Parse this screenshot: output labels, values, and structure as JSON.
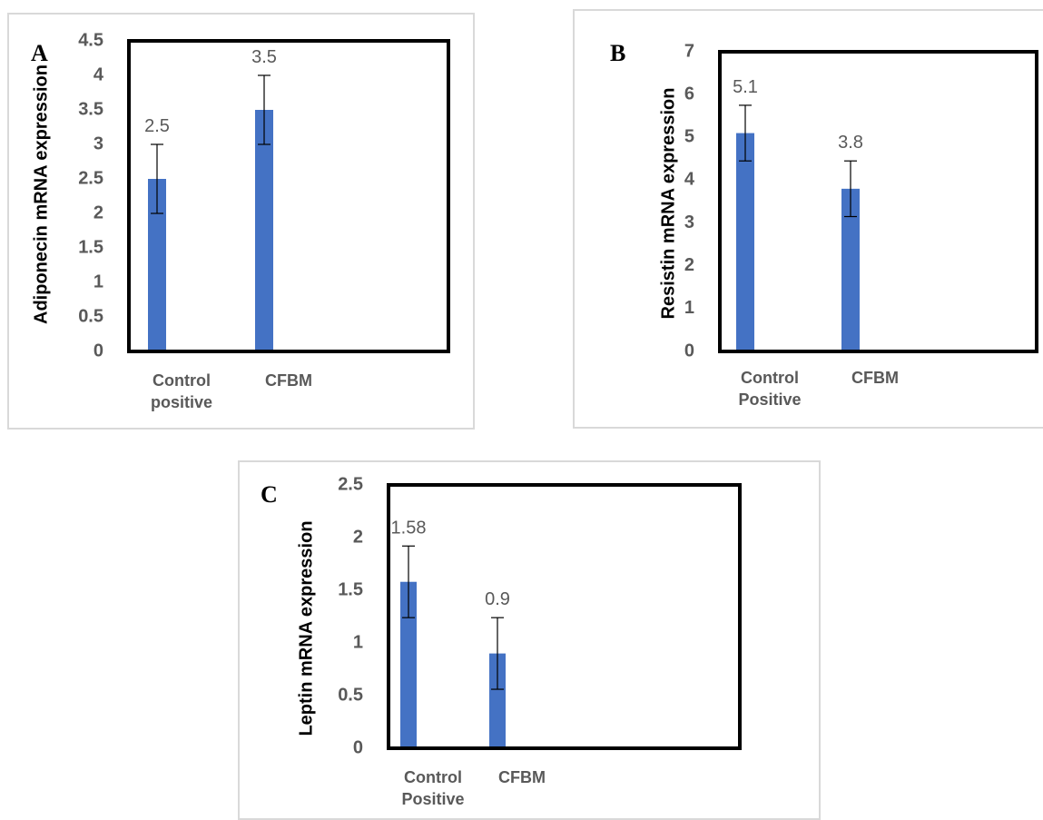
{
  "colors": {
    "bar": "#4472c4",
    "frame": "#000000",
    "panel_border": "#d9d9d9",
    "text": "#595959"
  },
  "chart_data": [
    {
      "panel_label": "A",
      "type": "bar",
      "categories": [
        [
          "Control",
          "positive"
        ],
        [
          "CFBM"
        ]
      ],
      "values": [
        2.5,
        3.5
      ],
      "errors": [
        0.5,
        0.5
      ],
      "data_labels": [
        "2.5",
        "3.5"
      ],
      "ylabel": "Adiponecin mRNA expression",
      "ylim": [
        0,
        4.5
      ],
      "yticks": [
        "0",
        "0.5",
        "1",
        "1.5",
        "2",
        "2.5",
        "3",
        "3.5",
        "4",
        "4.5"
      ],
      "grid": false
    },
    {
      "panel_label": "B",
      "type": "bar",
      "categories": [
        [
          "Control",
          "Positive"
        ],
        [
          "CFBM"
        ]
      ],
      "values": [
        5.1,
        3.8
      ],
      "errors": [
        0.65,
        0.65
      ],
      "data_labels": [
        "5.1",
        "3.8"
      ],
      "ylabel": "Resistin mRNA expression",
      "ylim": [
        0,
        7
      ],
      "yticks": [
        "0",
        "1",
        "2",
        "3",
        "4",
        "5",
        "6",
        "7"
      ],
      "grid": false
    },
    {
      "panel_label": "C",
      "type": "bar",
      "categories": [
        [
          "Control",
          "Positive"
        ],
        [
          "CFBM"
        ]
      ],
      "values": [
        1.58,
        0.9
      ],
      "errors": [
        0.34,
        0.34
      ],
      "data_labels": [
        "1.58",
        "0.9"
      ],
      "ylabel": "Leptin mRNA expression",
      "ylim": [
        0,
        2.5
      ],
      "yticks": [
        "0",
        "0.5",
        "1",
        "1.5",
        "2",
        "2.5"
      ],
      "grid": false
    }
  ]
}
